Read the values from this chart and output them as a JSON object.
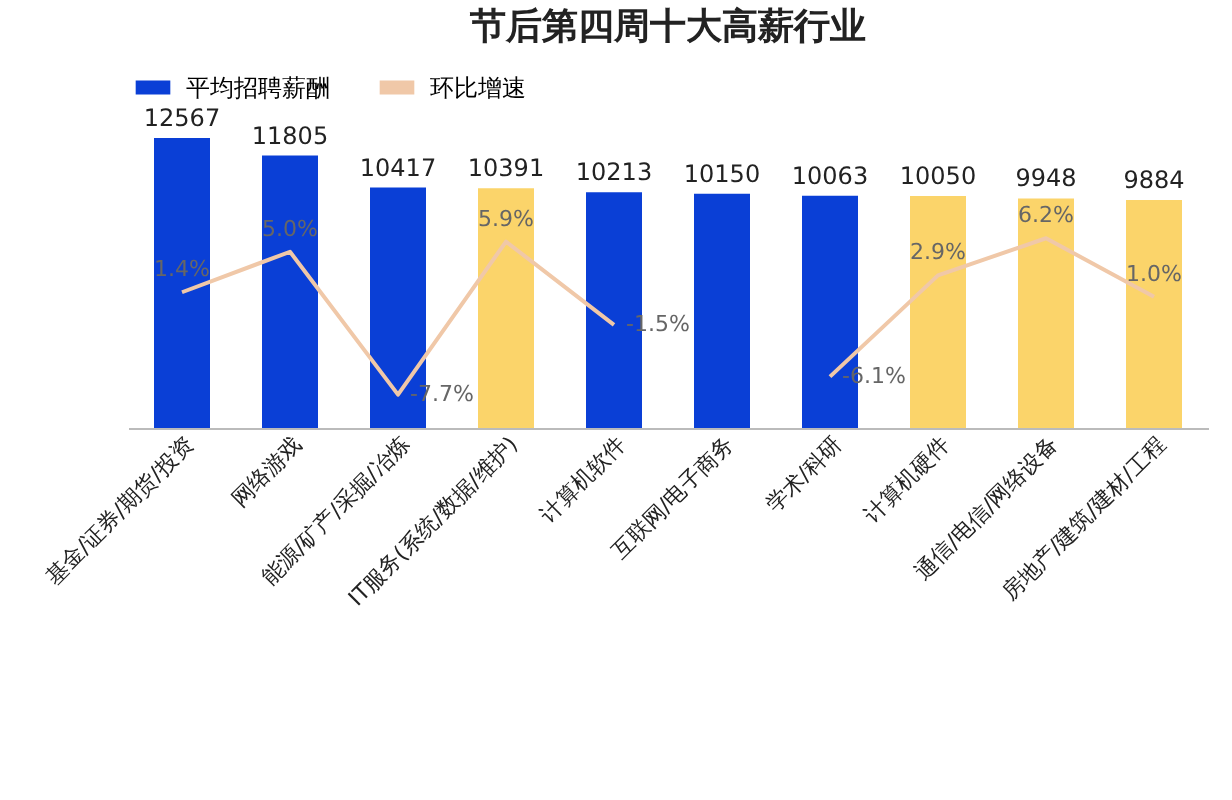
{
  "chart_data": {
    "type": "bar",
    "title": "节后第四周十大高薪行业",
    "categories": [
      "基金/证券/期货/投资",
      "网络游戏",
      "能源/矿产/采掘/冶炼",
      "IT服务(系统/数据/维护)",
      "计算机软件",
      "互联网/电子商务",
      "学术/科研",
      "计算机硬件",
      "通信/电信/网络设备",
      "房地产/建筑/建材/工程"
    ],
    "series": [
      {
        "name": "平均招聘薪酬",
        "color": "#0a3fd6",
        "colors": [
          "#0a3fd6",
          "#0a3fd6",
          "#0a3fd6",
          "#fbd46a",
          "#0a3fd6",
          "#0a3fd6",
          "#0a3fd6",
          "#fbd46a",
          "#fbd46a",
          "#fbd46a"
        ],
        "values": [
          12567,
          11805,
          10417,
          10391,
          10213,
          10150,
          10063,
          10050,
          9948,
          9884
        ]
      },
      {
        "name": "环比增速",
        "type": "line",
        "axis": "y2",
        "color": "#f0c8a8",
        "values": [
          1.4,
          5.0,
          -7.7,
          5.9,
          -1.5,
          null,
          -6.1,
          2.9,
          6.2,
          1.0
        ],
        "value_labels": [
          "1.4%",
          "5.0%",
          "-7.7%",
          "5.9%",
          "-1.5%",
          null,
          "-6.1%",
          "2.9%",
          "6.2%",
          "1.0%"
        ]
      }
    ],
    "data_labels": true,
    "legend": "top"
  }
}
